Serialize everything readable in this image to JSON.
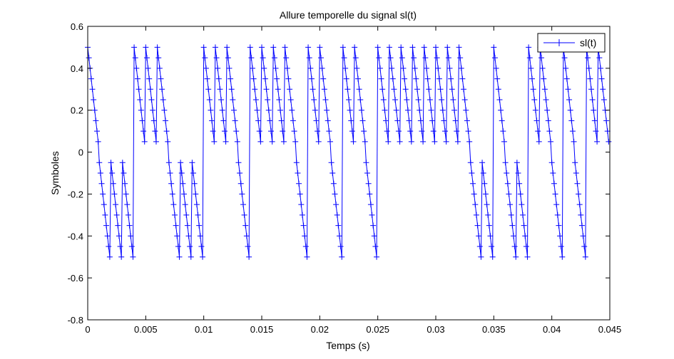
{
  "chart_data": {
    "type": "line",
    "title": "Allure temporelle du signal sl(t)",
    "xlabel": "Temps (s)",
    "ylabel": "Symboles",
    "xlim": [
      0,
      0.045
    ],
    "ylim": [
      -0.8,
      0.6
    ],
    "xticks": [
      0,
      0.005,
      0.01,
      0.015,
      0.02,
      0.025,
      0.03,
      0.035,
      0.04,
      0.045
    ],
    "xtick_labels": [
      "0",
      "0.005",
      "0.01",
      "0.015",
      "0.02",
      "0.025",
      "0.03",
      "0.035",
      "0.04",
      "0.045"
    ],
    "yticks": [
      -0.8,
      -0.6,
      -0.4,
      -0.2,
      0,
      0.2,
      0.4,
      0.6
    ],
    "ytick_labels": [
      "-0.8",
      "-0.6",
      "-0.4",
      "-0.2",
      "0",
      "0.2",
      "0.4",
      "0.6"
    ],
    "grid": false,
    "legend_position": "top-right",
    "series": [
      {
        "name": "sl(t)",
        "color": "#0000ff",
        "marker": "+",
        "symbol_duration": 0.001,
        "samples_per_symbol": 10,
        "sample_step": 0.0001,
        "symbols": [
          1,
          -1,
          -1,
          -1,
          1,
          1,
          1,
          -1,
          -1,
          -1,
          1,
          1,
          1,
          -1,
          1,
          1,
          1,
          1,
          -1,
          1,
          1,
          -1,
          1,
          1,
          -1,
          1,
          1,
          1,
          1,
          1,
          1,
          1,
          1,
          -1,
          -1,
          1,
          -1,
          -1,
          1,
          1,
          -1,
          1,
          -1,
          1,
          1
        ],
        "positive_level_start": 0.5,
        "negative_level_start": -0.05,
        "slope_per_sample": -0.05
      }
    ]
  }
}
